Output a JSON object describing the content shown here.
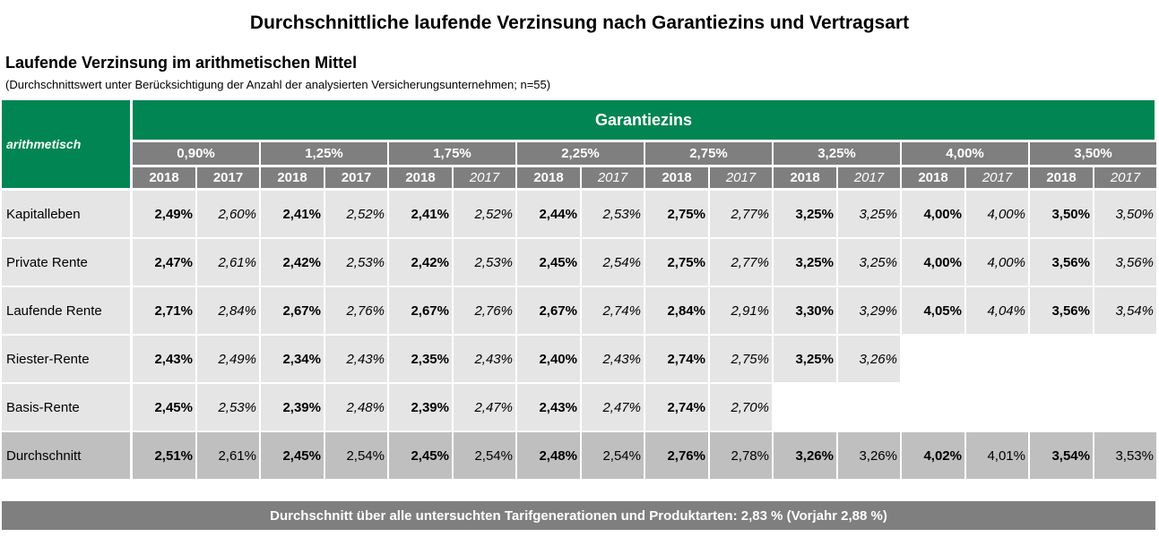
{
  "title": "Durchschnittliche laufende Verzinsung nach Garantiezins und Vertragsart",
  "subtitle": "Laufende Verzinsung im arithmetischen Mittel",
  "note": "(Durchschnittswert unter Berücksichtigung der Anzahl der analysierten Versicherungsunternehmen; n=55)",
  "table": {
    "corner_label": "arithmetisch",
    "group_header": "Garantiezins",
    "rates": [
      "0,90%",
      "1,25%",
      "1,75%",
      "2,25%",
      "2,75%",
      "3,25%",
      "4,00%",
      "3,50%"
    ],
    "year_new": "2018",
    "year_old": "2017",
    "rows": [
      {
        "label": "Kapitalleben",
        "values": [
          "2,49%",
          "2,60%",
          "2,41%",
          "2,52%",
          "2,41%",
          "2,52%",
          "2,44%",
          "2,53%",
          "2,75%",
          "2,77%",
          "3,25%",
          "3,25%",
          "4,00%",
          "4,00%",
          "3,50%",
          "3,50%"
        ]
      },
      {
        "label": "Private Rente",
        "values": [
          "2,47%",
          "2,61%",
          "2,42%",
          "2,53%",
          "2,42%",
          "2,53%",
          "2,45%",
          "2,54%",
          "2,75%",
          "2,77%",
          "3,25%",
          "3,25%",
          "4,00%",
          "4,00%",
          "3,56%",
          "3,56%"
        ]
      },
      {
        "label": "Laufende Rente",
        "values": [
          "2,71%",
          "2,84%",
          "2,67%",
          "2,76%",
          "2,67%",
          "2,76%",
          "2,67%",
          "2,74%",
          "2,84%",
          "2,91%",
          "3,30%",
          "3,29%",
          "4,05%",
          "4,04%",
          "3,56%",
          "3,54%"
        ]
      },
      {
        "label": "Riester-Rente",
        "values": [
          "2,43%",
          "2,49%",
          "2,34%",
          "2,43%",
          "2,35%",
          "2,43%",
          "2,40%",
          "2,43%",
          "2,74%",
          "2,75%",
          "3,25%",
          "3,26%",
          "",
          "",
          "",
          ""
        ]
      },
      {
        "label": "Basis-Rente",
        "values": [
          "2,45%",
          "2,53%",
          "2,39%",
          "2,48%",
          "2,39%",
          "2,47%",
          "2,43%",
          "2,47%",
          "2,74%",
          "2,70%",
          "",
          "",
          "",
          "",
          "",
          ""
        ]
      }
    ],
    "average_row": {
      "label": "Durchschnitt",
      "values": [
        "2,51%",
        "2,61%",
        "2,45%",
        "2,54%",
        "2,45%",
        "2,54%",
        "2,48%",
        "2,54%",
        "2,76%",
        "2,78%",
        "3,26%",
        "3,26%",
        "4,02%",
        "4,01%",
        "3,54%",
        "3,53%"
      ]
    }
  },
  "footer": "Durchschnitt über alle untersuchten Tarifgenerationen und Produktarten: 2,83 % (Vorjahr 2,88 %)"
}
